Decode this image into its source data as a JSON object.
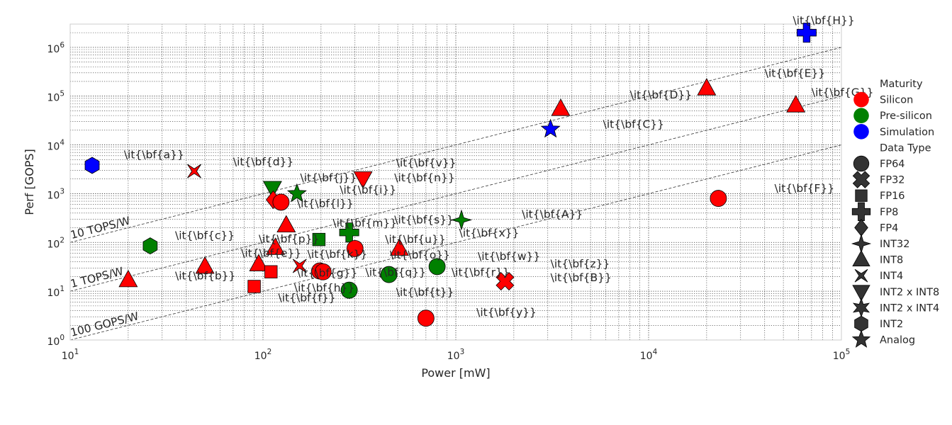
{
  "chart_data": {
    "type": "scatter",
    "xlabel": "Power [mW]",
    "ylabel": "Perf [GOPS]",
    "xscale": "log",
    "yscale": "log",
    "xlim": [
      10,
      100000
    ],
    "ylim": [
      1,
      3000000
    ],
    "x_ticks": [
      {
        "value": 10,
        "base": "10",
        "exp": "1"
      },
      {
        "value": 100,
        "base": "10",
        "exp": "2"
      },
      {
        "value": 1000,
        "base": "10",
        "exp": "3"
      },
      {
        "value": 10000,
        "base": "10",
        "exp": "4"
      },
      {
        "value": 100000,
        "base": "10",
        "exp": "5"
      }
    ],
    "y_ticks": [
      {
        "value": 1,
        "base": "10",
        "exp": "0"
      },
      {
        "value": 10,
        "base": "10",
        "exp": "1"
      },
      {
        "value": 100,
        "base": "10",
        "exp": "2"
      },
      {
        "value": 1000,
        "base": "10",
        "exp": "3"
      },
      {
        "value": 10000,
        "base": "10",
        "exp": "4"
      },
      {
        "value": 100000,
        "base": "10",
        "exp": "5"
      },
      {
        "value": 1000000,
        "base": "10",
        "exp": "6"
      }
    ],
    "grid": true,
    "grid_style": "dotted",
    "legend_position": "right",
    "efficiency_lines": [
      {
        "label": "10 TOPS/W",
        "tops_per_w": 10
      },
      {
        "label": "1 TOPS/W",
        "tops_per_w": 1
      },
      {
        "label": "100 GOPS/W",
        "tops_per_w": 0.1
      }
    ],
    "colors": {
      "Silicon": "#ff0000",
      "Pre-silicon": "#008000",
      "Simulation": "#0000ff"
    },
    "legend": {
      "maturity_title": "Maturity",
      "maturity": [
        {
          "label": "Silicon",
          "color": "#ff0000"
        },
        {
          "label": "Pre-silicon",
          "color": "#008000"
        },
        {
          "label": "Simulation",
          "color": "#0000ff"
        }
      ],
      "dtype_title": "Data Type",
      "dtype": [
        {
          "label": "FP64",
          "marker": "circle"
        },
        {
          "label": "FP32",
          "marker": "x"
        },
        {
          "label": "FP16",
          "marker": "square"
        },
        {
          "label": "FP8",
          "marker": "plus"
        },
        {
          "label": "FP4",
          "marker": "diamond"
        },
        {
          "label": "INT32",
          "marker": "star4"
        },
        {
          "label": "INT8",
          "marker": "triangle-up"
        },
        {
          "label": "INT4",
          "marker": "bowtie"
        },
        {
          "label": "INT2 x INT8",
          "marker": "triangle-down"
        },
        {
          "label": "INT2 x INT4",
          "marker": "star6"
        },
        {
          "label": "INT2",
          "marker": "hexagon"
        },
        {
          "label": "Analog",
          "marker": "star5"
        }
      ]
    },
    "points": [
      {
        "x": 13,
        "y": 3800,
        "maturity": "Simulation",
        "marker": "hexagon"
      },
      {
        "x": 26,
        "y": 85,
        "maturity": "Pre-silicon",
        "marker": "hexagon"
      },
      {
        "x": 20,
        "y": 17,
        "maturity": "Silicon",
        "marker": "triangle-up"
      },
      {
        "x": 44,
        "y": 2900,
        "maturity": "Silicon",
        "marker": "bowtie"
      },
      {
        "x": 50,
        "y": 32,
        "maturity": "Silicon",
        "marker": "triangle-up"
      },
      {
        "x": 90,
        "y": 12.5,
        "maturity": "Silicon",
        "marker": "square"
      },
      {
        "x": 95,
        "y": 36,
        "maturity": "Silicon",
        "marker": "triangle-up"
      },
      {
        "x": 110,
        "y": 25,
        "maturity": "Silicon",
        "marker": "square"
      },
      {
        "x": 112,
        "y": 1300,
        "maturity": "Pre-silicon",
        "marker": "triangle-down"
      },
      {
        "x": 150,
        "y": 1000,
        "maturity": "Pre-silicon",
        "marker": "star5"
      },
      {
        "x": 155,
        "y": 33,
        "maturity": "Silicon",
        "marker": "bowtie"
      },
      {
        "x": 113,
        "y": 750,
        "maturity": "Silicon",
        "marker": "diamond"
      },
      {
        "x": 124,
        "y": 670,
        "maturity": "Silicon",
        "marker": "circle"
      },
      {
        "x": 132,
        "y": 225,
        "maturity": "Silicon",
        "marker": "triangle-up"
      },
      {
        "x": 116,
        "y": 78,
        "maturity": "Silicon",
        "marker": "triangle-up"
      },
      {
        "x": 195,
        "y": 115,
        "maturity": "Pre-silicon",
        "marker": "square"
      },
      {
        "x": 197,
        "y": 26,
        "maturity": "Silicon",
        "marker": "circle"
      },
      {
        "x": 205,
        "y": 25,
        "maturity": "Silicon",
        "marker": "circle"
      },
      {
        "x": 280,
        "y": 160,
        "maturity": "Pre-silicon",
        "marker": "plus"
      },
      {
        "x": 280,
        "y": 10.5,
        "maturity": "Pre-silicon",
        "marker": "circle"
      },
      {
        "x": 300,
        "y": 75,
        "maturity": "Silicon",
        "marker": "circle"
      },
      {
        "x": 330,
        "y": 2050,
        "maturity": "Silicon",
        "marker": "triangle-down"
      },
      {
        "x": 450,
        "y": 22,
        "maturity": "Pre-silicon",
        "marker": "circle"
      },
      {
        "x": 510,
        "y": 75,
        "maturity": "Silicon",
        "marker": "triangle-up"
      },
      {
        "x": 700,
        "y": 2.8,
        "maturity": "Silicon",
        "marker": "circle"
      },
      {
        "x": 800,
        "y": 32,
        "maturity": "Pre-silicon",
        "marker": "circle"
      },
      {
        "x": 1070,
        "y": 290,
        "maturity": "Pre-silicon",
        "marker": "star4"
      },
      {
        "x": 1800,
        "y": 16,
        "maturity": "Silicon",
        "marker": "x"
      },
      {
        "x": 3100,
        "y": 21000,
        "maturity": "Simulation",
        "marker": "star5"
      },
      {
        "x": 3500,
        "y": 55000,
        "maturity": "Silicon",
        "marker": "triangle-up"
      },
      {
        "x": 20000,
        "y": 145000,
        "maturity": "Silicon",
        "marker": "triangle-up"
      },
      {
        "x": 23000,
        "y": 800,
        "maturity": "Silicon",
        "marker": "circle"
      },
      {
        "x": 58000,
        "y": 65000,
        "maturity": "Silicon",
        "marker": "triangle-up"
      },
      {
        "x": 66000,
        "y": 2000000,
        "maturity": "Simulation",
        "marker": "plus"
      }
    ],
    "annotations": [
      {
        "text": "\\it{\\bf{a}}",
        "x": 19,
        "y": 5300
      },
      {
        "text": "\\it{\\bf{b}}",
        "x": 35,
        "y": 17.5
      },
      {
        "text": "\\it{\\bf{c}}",
        "x": 35,
        "y": 118
      },
      {
        "text": "\\it{\\bf{d}}",
        "x": 70,
        "y": 3800
      },
      {
        "text": "\\it{\\bf{e}}",
        "x": 77,
        "y": 51
      },
      {
        "text": "\\it{\\bf{f}}",
        "x": 120,
        "y": 6.2
      },
      {
        "text": "\\it{\\bf{g}}",
        "x": 150,
        "y": 20
      },
      {
        "text": "\\it{\\bf{h}}",
        "x": 145,
        "y": 9.8
      },
      {
        "text": "\\it{\\bf{i}}",
        "x": 250,
        "y": 1010
      },
      {
        "text": "\\it{\\bf{j}}",
        "x": 156,
        "y": 1800
      },
      {
        "text": "\\it{\\bf{k}}",
        "x": 170,
        "y": 48
      },
      {
        "text": "\\it{\\bf{l}}",
        "x": 150,
        "y": 530
      },
      {
        "text": "\\it{\\bf{m}}",
        "x": 230,
        "y": 210
      },
      {
        "text": "\\it{\\bf{n}}",
        "x": 480,
        "y": 1800
      },
      {
        "text": "\\it{\\bf{o}}",
        "x": 455,
        "y": 47
      },
      {
        "text": "\\it{\\bf{p}}",
        "x": 95,
        "y": 100
      },
      {
        "text": "\\it{\\bf{q}}",
        "x": 340,
        "y": 20.5
      },
      {
        "text": "\\it{\\bf{r}}",
        "x": 950,
        "y": 20.5
      },
      {
        "text": "\\it{\\bf{s}}",
        "x": 480,
        "y": 245
      },
      {
        "text": "\\it{\\bf{t}}",
        "x": 490,
        "y": 8.1
      },
      {
        "text": "\\it{\\bf{u}}",
        "x": 430,
        "y": 98
      },
      {
        "text": "\\it{\\bf{v}}",
        "x": 490,
        "y": 3600
      },
      {
        "text": "\\it{\\bf{w}}",
        "x": 1300,
        "y": 44
      },
      {
        "text": "\\it{\\bf{x}}",
        "x": 1040,
        "y": 132
      },
      {
        "text": "\\it{\\bf{y}}",
        "x": 1280,
        "y": 3.1
      },
      {
        "text": "\\it{\\bf{z}}",
        "x": 3100,
        "y": 31
      },
      {
        "text": "\\it{\\bf{A}}",
        "x": 2200,
        "y": 320
      },
      {
        "text": "\\it{\\bf{B}}",
        "x": 3100,
        "y": 16
      },
      {
        "text": "\\it{\\bf{C}}",
        "x": 5800,
        "y": 22500
      },
      {
        "text": "\\it{\\bf{D}}",
        "x": 8000,
        "y": 90000
      },
      {
        "text": "\\it{\\bf{E}}",
        "x": 40000,
        "y": 250000
      },
      {
        "text": "\\it{\\bf{F}}",
        "x": 45000,
        "y": 1080
      },
      {
        "text": "\\it{\\bf{G}}",
        "x": 70000,
        "y": 100000
      },
      {
        "text": "\\it{\\bf{H}}",
        "x": 56000,
        "y": 3000000
      }
    ]
  }
}
